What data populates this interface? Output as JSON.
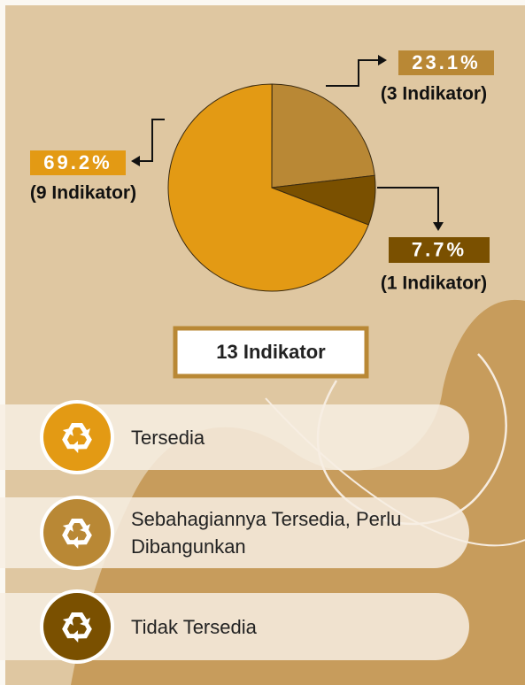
{
  "chart_data": {
    "type": "pie",
    "categories": [
      "Tersedia",
      "Sebahagiannya Tersedia, Perlu Dibangunkan",
      "Tidak Tersedia"
    ],
    "values": [
      69.2,
      23.1,
      7.7
    ],
    "value_labels": [
      "69.2%",
      "23.1%",
      "7.7%"
    ],
    "count_labels": [
      "(9 Indikator)",
      "(3 Indikator)",
      "(1 Indikator)"
    ],
    "colors": [
      "#e39a14",
      "#b98835",
      "#7a5000"
    ],
    "start_angle": 111,
    "total_label": "13 Indikator"
  }
}
